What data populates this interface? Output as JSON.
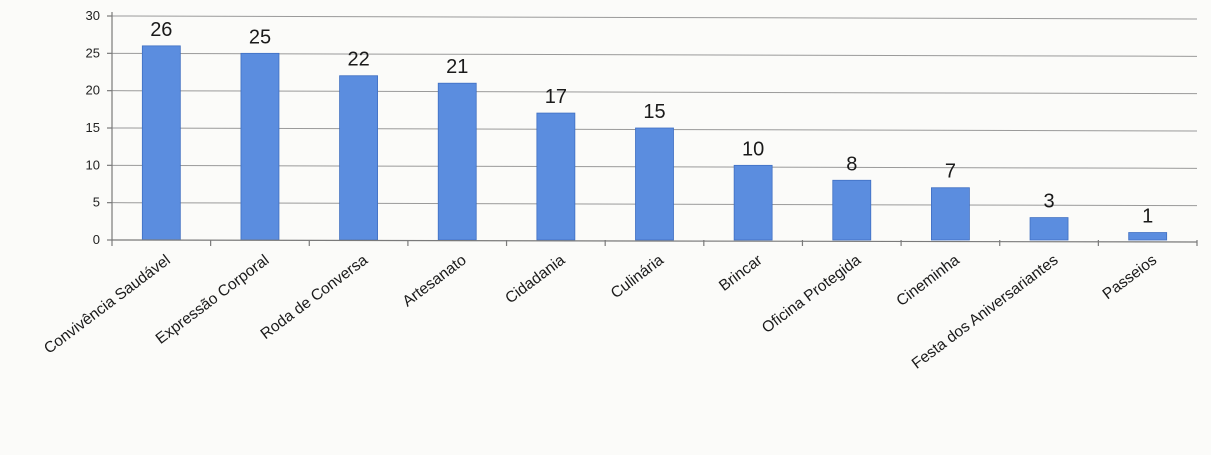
{
  "chart_data": {
    "type": "bar",
    "categories": [
      "Convivência Saudável",
      "Expressão Corporal",
      "Roda de Conversa",
      "Artesanato",
      "Cidadania",
      "Culinária",
      "Brincar",
      "Oficina Protegida",
      "Cineminha",
      "Festa dos Aniversariantes",
      "Passeios"
    ],
    "values": [
      26,
      25,
      22,
      21,
      17,
      15,
      10,
      8,
      7,
      3,
      1
    ],
    "data_labels": [
      "26",
      "25",
      "22",
      "21",
      "17",
      "15",
      "10",
      "8",
      "7",
      "3",
      "1"
    ],
    "yticks": [
      0,
      5,
      10,
      15,
      20,
      25,
      30
    ],
    "ylim": [
      0,
      30
    ],
    "title": "",
    "xlabel": "",
    "ylabel": "",
    "grid": true,
    "legend": "none",
    "colors": {
      "bar": "#5b8ddf",
      "bar_edge": "#3f6fc2",
      "grid": "#9a9a9a"
    }
  }
}
